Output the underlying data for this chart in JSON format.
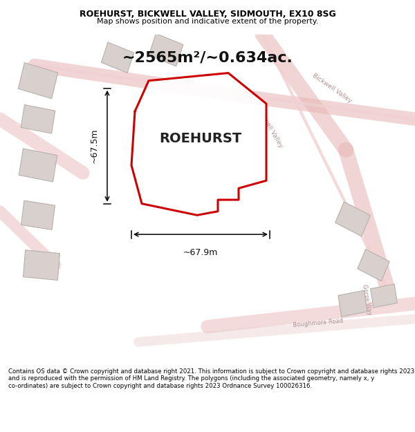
{
  "title": "ROEHURST, BICKWELL VALLEY, SIDMOUTH, EX10 8SG",
  "subtitle": "Map shows position and indicative extent of the property.",
  "area_text": "~2565m²/~0.634ac.",
  "property_label": "ROEHURST",
  "dim_width": "~67.9m",
  "dim_height": "~67.5m",
  "footer": "Contains OS data © Crown copyright and database right 2021. This information is subject to Crown copyright and database rights 2023 and is reproduced with the permission of HM Land Registry. The polygons (including the associated geometry, namely x, y co-ordinates) are subject to Crown copyright and database rights 2023 Ordnance Survey 100026316.",
  "bg_color": "#f5f0ee",
  "map_bg": "#f5f0ee",
  "plot_outline_color": "#cc0000",
  "road_color_pink": "#e8a0a0",
  "road_color_light": "#e0c8c8",
  "building_color": "#d8d0cc",
  "footer_bg": "#ffffff",
  "title_bg": "#ffffff"
}
